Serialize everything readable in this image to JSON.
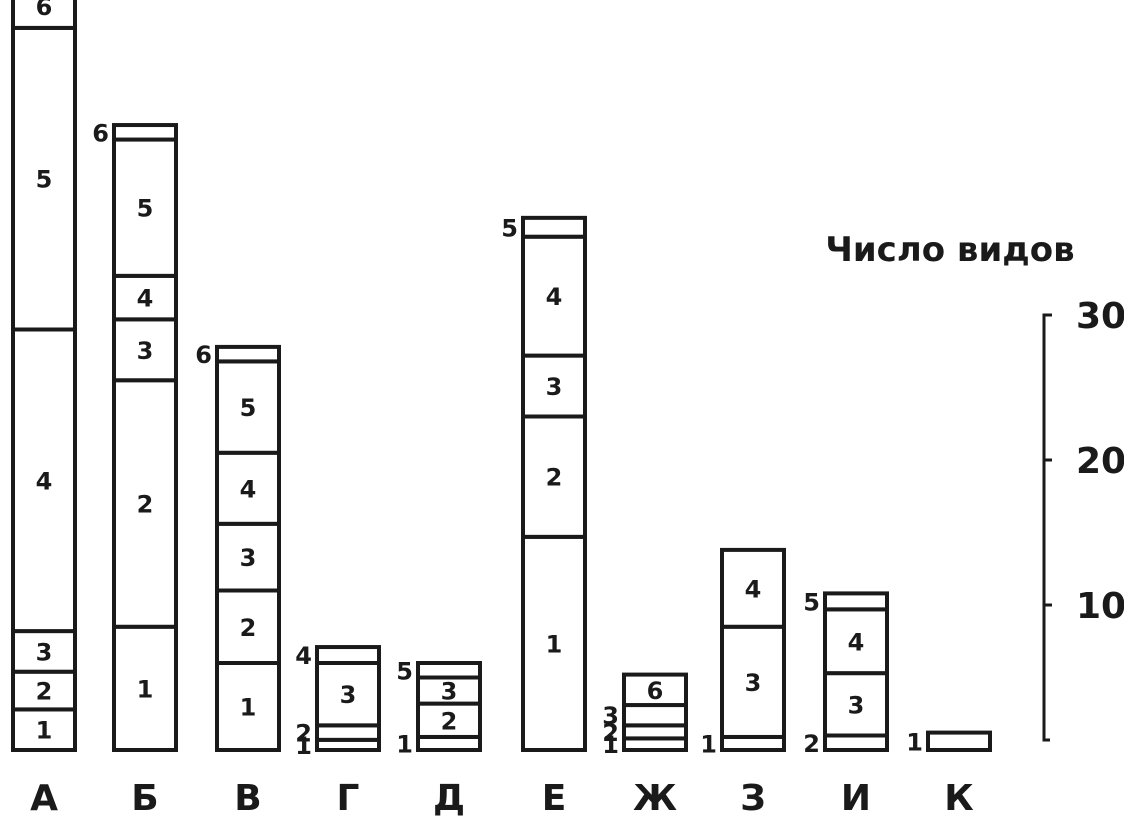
{
  "chart_data": {
    "type": "bar",
    "stacked": true,
    "ylabel": "Число видов",
    "ylim": [
      0,
      30
    ],
    "yticks": [
      10,
      20,
      30
    ],
    "grid": false,
    "bars": [
      {
        "category": "А",
        "segments": [
          {
            "label": "1",
            "value": 2.8
          },
          {
            "label": "2",
            "value": 2.6
          },
          {
            "label": "3",
            "value": 2.8
          },
          {
            "label": "4",
            "value": 20.8
          },
          {
            "label": "5",
            "value": 20.8
          },
          {
            "label": "6",
            "value": 3.0
          }
        ]
      },
      {
        "category": "Б",
        "segments": [
          {
            "label": "1",
            "value": 8.5
          },
          {
            "label": "2",
            "value": 17.0
          },
          {
            "label": "3",
            "value": 4.2
          },
          {
            "label": "4",
            "value": 3.0
          },
          {
            "label": "5",
            "value": 9.4
          },
          {
            "label": "6",
            "value": 1.0
          }
        ]
      },
      {
        "category": "В",
        "segments": [
          {
            "label": "1",
            "value": 6.0
          },
          {
            "label": "2",
            "value": 5.0
          },
          {
            "label": "3",
            "value": 4.6
          },
          {
            "label": "4",
            "value": 4.9
          },
          {
            "label": "5",
            "value": 6.3
          },
          {
            "label": "6",
            "value": 1.0
          }
        ]
      },
      {
        "category": "Г",
        "segments": [
          {
            "label": "1",
            "value": 0.7
          },
          {
            "label": "2",
            "value": 1.0
          },
          {
            "label": "3",
            "value": 4.3
          },
          {
            "label": "4",
            "value": 1.1
          }
        ]
      },
      {
        "category": "Д",
        "segments": [
          {
            "label": "1",
            "value": 0.9
          },
          {
            "label": "2",
            "value": 2.3
          },
          {
            "label": "3",
            "value": 1.8
          },
          {
            "label": "5",
            "value": 1.0
          }
        ]
      },
      {
        "category": "Е",
        "segments": [
          {
            "label": "1",
            "value": 14.7
          },
          {
            "label": "2",
            "value": 8.3
          },
          {
            "label": "3",
            "value": 4.2
          },
          {
            "label": "4",
            "value": 8.2
          },
          {
            "label": "5",
            "value": 1.3
          }
        ]
      },
      {
        "category": "Ж",
        "segments": [
          {
            "label": "1",
            "value": 0.8
          },
          {
            "label": "2",
            "value": 0.9
          },
          {
            "label": "3",
            "value": 1.4
          },
          {
            "label": "6",
            "value": 2.1
          }
        ]
      },
      {
        "category": "З",
        "segments": [
          {
            "label": "1",
            "value": 0.9
          },
          {
            "label": "3",
            "value": 7.6
          },
          {
            "label": "4",
            "value": 5.3
          }
        ]
      },
      {
        "category": "И",
        "segments": [
          {
            "label": "2",
            "value": 1.0
          },
          {
            "label": "3",
            "value": 4.3
          },
          {
            "label": "4",
            "value": 4.4
          },
          {
            "label": "5",
            "value": 1.1
          }
        ]
      },
      {
        "category": "К",
        "segments": [
          {
            "label": "1",
            "value": 1.2
          }
        ]
      }
    ]
  }
}
